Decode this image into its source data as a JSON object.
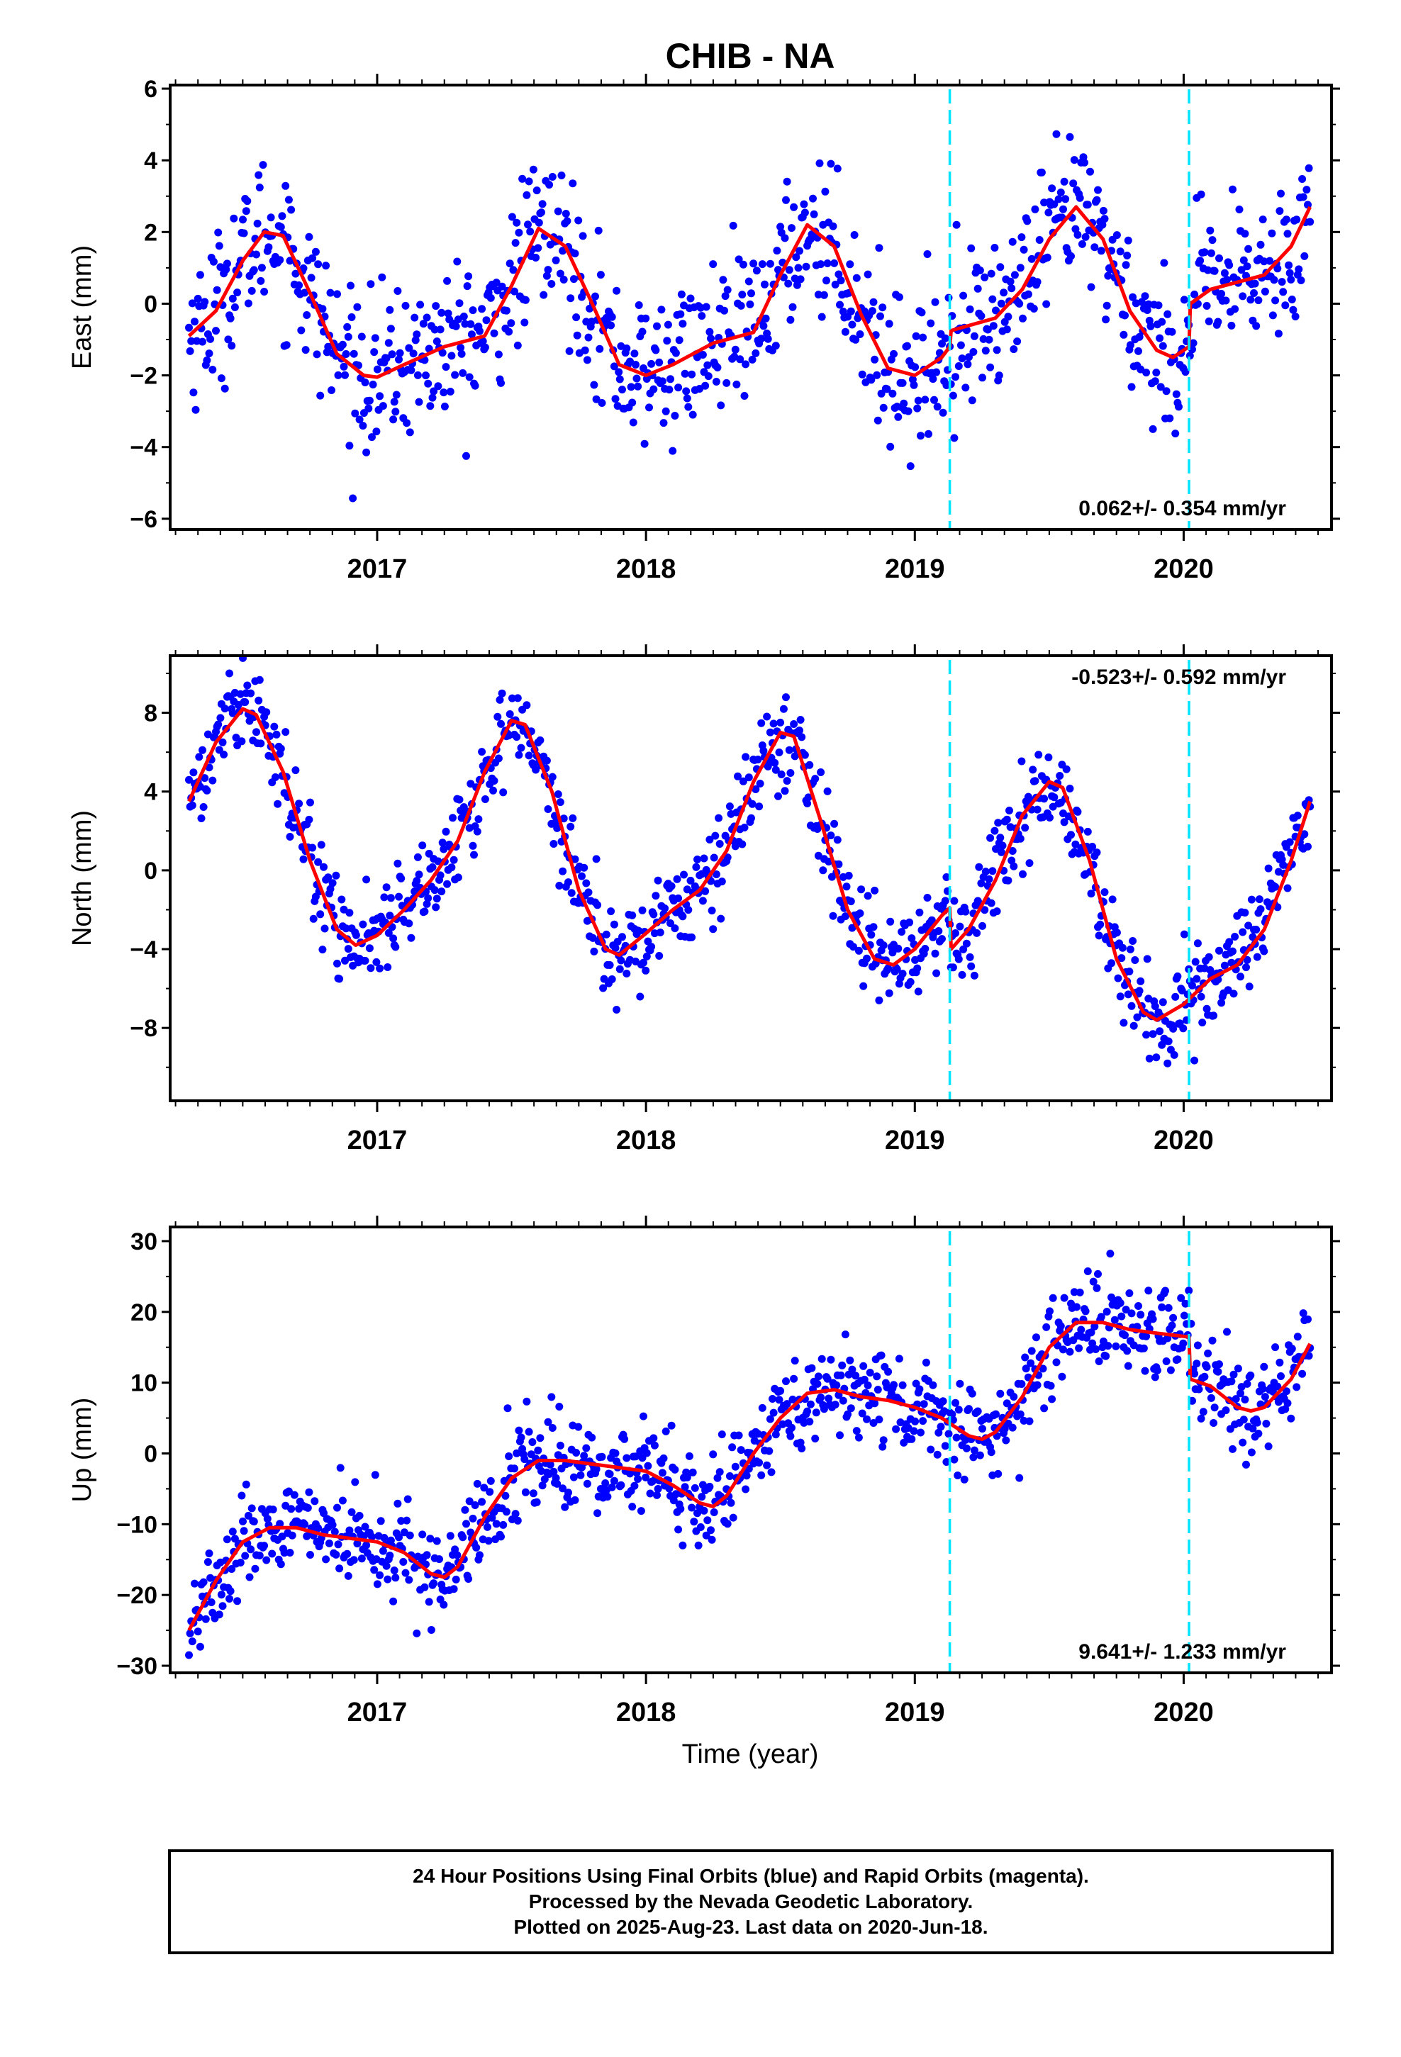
{
  "title": "CHIB - NA",
  "xlabel": "Time (year)",
  "footer": {
    "line1": "24 Hour Positions Using Final Orbits (blue) and Rapid Orbits (magenta).",
    "line2": "Processed by the Nevada Geodetic Laboratory.",
    "line3": "Plotted on 2025-Aug-23. Last data on 2020-Jun-18."
  },
  "colors": {
    "final_orbits": "#0000ff",
    "fit": "#ff0000",
    "events": "#00e5ff",
    "frame": "#000000"
  },
  "chart_data": [
    {
      "type": "scatter",
      "component": "east",
      "ylabel": "East (mm)",
      "xlim": [
        2016.23,
        2020.55
      ],
      "ylim": [
        -6.3,
        6.1
      ],
      "yticks": [
        -6,
        -4,
        -2,
        0,
        2,
        4,
        6
      ],
      "ytick_labels": [
        "−6",
        "−4",
        "−2",
        "0",
        "2",
        "4",
        "6"
      ],
      "xticks": [
        2017,
        2018,
        2019,
        2020
      ],
      "rate_label": "0.062+/- 0.354 mm/yr",
      "rate_position": "bottom-right",
      "event_lines": [
        2019.13,
        2020.02
      ],
      "fit_curve": [
        [
          2016.3,
          -0.9
        ],
        [
          2016.4,
          -0.2
        ],
        [
          2016.5,
          1.2
        ],
        [
          2016.58,
          2.0
        ],
        [
          2016.65,
          1.9
        ],
        [
          2016.75,
          0.3
        ],
        [
          2016.85,
          -1.4
        ],
        [
          2016.95,
          -2.0
        ],
        [
          2017.0,
          -2.05
        ],
        [
          2017.1,
          -1.7
        ],
        [
          2017.25,
          -1.2
        ],
        [
          2017.4,
          -0.9
        ],
        [
          2017.5,
          0.5
        ],
        [
          2017.6,
          2.1
        ],
        [
          2017.7,
          1.6
        ],
        [
          2017.8,
          0.0
        ],
        [
          2017.9,
          -1.7
        ],
        [
          2018.0,
          -2.0
        ],
        [
          2018.1,
          -1.7
        ],
        [
          2018.25,
          -1.1
        ],
        [
          2018.4,
          -0.8
        ],
        [
          2018.5,
          0.8
        ],
        [
          2018.6,
          2.2
        ],
        [
          2018.7,
          1.6
        ],
        [
          2018.8,
          -0.3
        ],
        [
          2018.9,
          -1.8
        ],
        [
          2019.0,
          -2.0
        ],
        [
          2019.1,
          -1.5
        ],
        [
          2019.13,
          -1.2
        ],
        [
          2019.135,
          -0.75
        ],
        [
          2019.3,
          -0.4
        ],
        [
          2019.4,
          0.4
        ],
        [
          2019.5,
          1.8
        ],
        [
          2019.6,
          2.7
        ],
        [
          2019.7,
          1.8
        ],
        [
          2019.8,
          -0.2
        ],
        [
          2019.9,
          -1.3
        ],
        [
          2019.96,
          -1.5
        ],
        [
          2020.02,
          -1.2
        ],
        [
          2020.025,
          0.0
        ],
        [
          2020.1,
          0.4
        ],
        [
          2020.2,
          0.6
        ],
        [
          2020.3,
          0.8
        ],
        [
          2020.4,
          1.6
        ],
        [
          2020.47,
          2.7
        ]
      ],
      "seasonal": {
        "mean": 0.0,
        "amp": 2.0,
        "phase": 0.58,
        "noise": 1.05,
        "n": 1000
      }
    },
    {
      "type": "scatter",
      "component": "north",
      "ylabel": "North (mm)",
      "xlim": [
        2016.23,
        2020.55
      ],
      "ylim": [
        -11.7,
        10.9
      ],
      "yticks": [
        -8,
        -4,
        0,
        4,
        8
      ],
      "ytick_labels": [
        "−8",
        "−4",
        "0",
        "4",
        "8"
      ],
      "xticks": [
        2017,
        2018,
        2019,
        2020
      ],
      "rate_label": "-0.523+/- 0.592 mm/yr",
      "rate_position": "top-right",
      "event_lines": [
        2019.13,
        2020.02
      ],
      "fit_curve": [
        [
          2016.3,
          3.5
        ],
        [
          2016.4,
          6.5
        ],
        [
          2016.5,
          8.2
        ],
        [
          2016.55,
          7.9
        ],
        [
          2016.65,
          5.0
        ],
        [
          2016.75,
          0.5
        ],
        [
          2016.85,
          -3.0
        ],
        [
          2016.92,
          -3.8
        ],
        [
          2017.0,
          -3.3
        ],
        [
          2017.1,
          -2.0
        ],
        [
          2017.2,
          -0.5
        ],
        [
          2017.3,
          1.5
        ],
        [
          2017.4,
          5.0
        ],
        [
          2017.5,
          7.6
        ],
        [
          2017.55,
          7.4
        ],
        [
          2017.65,
          4.0
        ],
        [
          2017.75,
          -1.0
        ],
        [
          2017.85,
          -4.0
        ],
        [
          2017.9,
          -4.3
        ],
        [
          2018.0,
          -3.2
        ],
        [
          2018.1,
          -2.0
        ],
        [
          2018.2,
          -1.0
        ],
        [
          2018.3,
          1.0
        ],
        [
          2018.4,
          4.5
        ],
        [
          2018.5,
          7.0
        ],
        [
          2018.55,
          6.8
        ],
        [
          2018.65,
          2.5
        ],
        [
          2018.75,
          -2.0
        ],
        [
          2018.85,
          -4.5
        ],
        [
          2018.92,
          -4.8
        ],
        [
          2019.0,
          -4.0
        ],
        [
          2019.1,
          -2.3
        ],
        [
          2019.13,
          -1.9
        ],
        [
          2019.135,
          -4.0
        ],
        [
          2019.2,
          -3.0
        ],
        [
          2019.3,
          -0.5
        ],
        [
          2019.4,
          2.8
        ],
        [
          2019.5,
          4.5
        ],
        [
          2019.55,
          4.2
        ],
        [
          2019.65,
          0.5
        ],
        [
          2019.75,
          -4.5
        ],
        [
          2019.85,
          -7.2
        ],
        [
          2019.9,
          -7.6
        ],
        [
          2020.0,
          -6.8
        ],
        [
          2020.1,
          -5.5
        ],
        [
          2020.2,
          -4.8
        ],
        [
          2020.3,
          -3.0
        ],
        [
          2020.4,
          0.5
        ],
        [
          2020.47,
          3.5
        ]
      ],
      "seasonal": {
        "mean": 0.0,
        "amp": 6.0,
        "phase": 0.5,
        "noise": 1.2,
        "n": 1000
      }
    },
    {
      "type": "scatter",
      "component": "up",
      "ylabel": "Up (mm)",
      "xlim": [
        2016.23,
        2020.55
      ],
      "ylim": [
        -31.0,
        32.0
      ],
      "yticks": [
        -30,
        -20,
        -10,
        0,
        10,
        20,
        30
      ],
      "ytick_labels": [
        "−30",
        "−20",
        "−10",
        "0",
        "10",
        "20",
        "30"
      ],
      "xticks": [
        2017,
        2018,
        2019,
        2020
      ],
      "rate_label": "9.641+/- 1.233 mm/yr",
      "rate_position": "bottom-right",
      "event_lines": [
        2019.13,
        2020.02
      ],
      "fit_curve": [
        [
          2016.3,
          -25.0
        ],
        [
          2016.4,
          -18.0
        ],
        [
          2016.5,
          -12.5
        ],
        [
          2016.6,
          -10.5
        ],
        [
          2016.7,
          -10.5
        ],
        [
          2016.8,
          -11.5
        ],
        [
          2016.9,
          -12.0
        ],
        [
          2017.0,
          -12.5
        ],
        [
          2017.1,
          -14.0
        ],
        [
          2017.2,
          -17.0
        ],
        [
          2017.25,
          -17.5
        ],
        [
          2017.3,
          -16.0
        ],
        [
          2017.4,
          -9.0
        ],
        [
          2017.5,
          -3.5
        ],
        [
          2017.6,
          -1.0
        ],
        [
          2017.7,
          -1.0
        ],
        [
          2017.8,
          -1.5
        ],
        [
          2017.9,
          -2.0
        ],
        [
          2018.0,
          -2.5
        ],
        [
          2018.1,
          -4.5
        ],
        [
          2018.2,
          -7.0
        ],
        [
          2018.25,
          -7.5
        ],
        [
          2018.3,
          -6.0
        ],
        [
          2018.4,
          0.0
        ],
        [
          2018.5,
          5.0
        ],
        [
          2018.6,
          8.5
        ],
        [
          2018.7,
          9.0
        ],
        [
          2018.8,
          8.0
        ],
        [
          2018.9,
          7.5
        ],
        [
          2019.0,
          6.5
        ],
        [
          2019.1,
          5.0
        ],
        [
          2019.2,
          2.5
        ],
        [
          2019.25,
          2.0
        ],
        [
          2019.3,
          3.0
        ],
        [
          2019.4,
          8.0
        ],
        [
          2019.5,
          15.0
        ],
        [
          2019.6,
          18.5
        ],
        [
          2019.7,
          18.5
        ],
        [
          2019.8,
          17.5
        ],
        [
          2019.9,
          17.0
        ],
        [
          2020.01,
          16.5
        ],
        [
          2020.02,
          16.5
        ],
        [
          2020.025,
          10.5
        ],
        [
          2020.1,
          9.5
        ],
        [
          2020.2,
          6.5
        ],
        [
          2020.25,
          6.0
        ],
        [
          2020.3,
          6.5
        ],
        [
          2020.4,
          10.5
        ],
        [
          2020.47,
          15.5
        ]
      ],
      "seasonal": {
        "mean": 0.0,
        "amp": 2.5,
        "phase": 0.6,
        "noise": 3.2,
        "n": 1000
      }
    }
  ]
}
